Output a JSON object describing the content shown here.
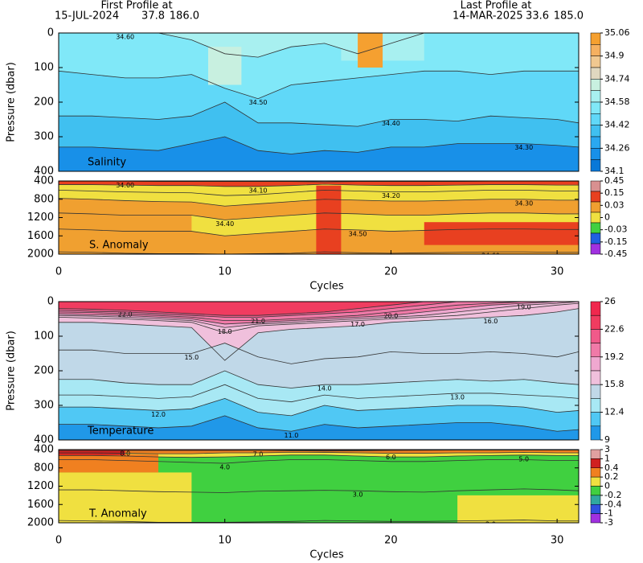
{
  "header": {
    "first": {
      "title": "First Profile at",
      "date": "15-JUL-2024",
      "lat": "37.8",
      "lon": "186.0"
    },
    "last": {
      "title": "Last Profile at",
      "date": "14-MAR-2025",
      "lat": "33.6",
      "lon": "185.0"
    }
  },
  "chart_data": [
    {
      "type": "contour",
      "label": "Salinity",
      "ylabel": "Pressure (dbar)",
      "x": [
        0,
        2,
        4,
        6,
        8,
        10,
        12,
        14,
        16,
        18,
        20,
        22,
        24,
        26,
        28,
        30,
        31.3
      ],
      "xlim": [
        0,
        31.3
      ],
      "ylim": [
        0,
        400
      ],
      "yticks": [
        0,
        100,
        200,
        300,
        400
      ],
      "y_inverted": true,
      "colorbar": {
        "ticks": [
          35.06,
          34.9,
          34.74,
          34.58,
          34.42,
          34.26,
          34.1
        ],
        "colors": [
          "#f5a030",
          "#f5b060",
          "#f0c890",
          "#e0d8c0",
          "#c8f0e0",
          "#a8f0f0",
          "#80e8f8",
          "#60d8f8",
          "#40c0f0",
          "#2aa8f0",
          "#1890e8",
          "#0878d8"
        ]
      },
      "contours": [
        {
          "label": "34.60",
          "level": 34.6,
          "depth": [
            0,
            0,
            0,
            0,
            20,
            60,
            70,
            40,
            30,
            60,
            30,
            0,
            0,
            0,
            0,
            0,
            0
          ]
        },
        {
          "label": "34.50",
          "level": 34.5,
          "depth": [
            110,
            120,
            130,
            130,
            120,
            160,
            190,
            150,
            140,
            130,
            120,
            110,
            110,
            120,
            110,
            110,
            110
          ]
        },
        {
          "label": "34.40",
          "level": 34.4,
          "depth": [
            240,
            240,
            245,
            250,
            240,
            200,
            260,
            260,
            265,
            270,
            250,
            250,
            255,
            240,
            245,
            250,
            260
          ]
        },
        {
          "label": "34.30",
          "level": 34.3,
          "depth": [
            330,
            330,
            335,
            340,
            320,
            300,
            340,
            350,
            340,
            345,
            330,
            330,
            320,
            320,
            320,
            325,
            330
          ]
        }
      ],
      "band_values": [
        34.65,
        34.55,
        34.45,
        34.35,
        34.2
      ],
      "patches": [
        {
          "value": 34.65,
          "x": [
            17,
            22
          ],
          "y": [
            0,
            80
          ]
        },
        {
          "value": 34.7,
          "x": [
            9,
            11
          ],
          "y": [
            40,
            150
          ]
        },
        {
          "value": 35.0,
          "x": [
            18,
            19.5
          ],
          "y": [
            0,
            100
          ]
        }
      ]
    },
    {
      "type": "contour",
      "label": "S. Anomaly",
      "xlabel": "Cycles",
      "x": [
        0,
        2,
        4,
        6,
        8,
        10,
        12,
        14,
        16,
        18,
        20,
        22,
        24,
        26,
        28,
        30,
        31.3
      ],
      "xlim": [
        0,
        31.3
      ],
      "xticks": [
        0,
        10,
        20,
        30
      ],
      "ylim": [
        400,
        2000
      ],
      "yticks": [
        400,
        800,
        1200,
        1600,
        2000
      ],
      "y_inverted": true,
      "colorbar": {
        "ticks": [
          0.45,
          0.15,
          0.03,
          0,
          -0.03,
          -0.15,
          -0.45
        ],
        "colors": [
          "#d89090",
          "#e84020",
          "#f0a030",
          "#f0e040",
          "#40d040",
          "#2060e0",
          "#a030e0"
        ]
      },
      "contours": [
        {
          "label": "34.00",
          "level": 34.0,
          "depth": [
            405,
            405,
            405,
            410,
            410,
            410,
            410,
            410,
            420,
            410,
            410,
            410,
            410,
            405,
            405,
            405,
            405
          ]
        },
        {
          "label": "34.10",
          "level": 34.1,
          "depth": [
            480,
            480,
            490,
            500,
            500,
            520,
            520,
            500,
            470,
            490,
            500,
            500,
            490,
            480,
            480,
            490,
            490
          ]
        },
        {
          "label": "34.20",
          "level": 34.2,
          "depth": [
            600,
            620,
            640,
            650,
            660,
            720,
            700,
            650,
            600,
            620,
            640,
            640,
            620,
            600,
            600,
            620,
            620
          ]
        },
        {
          "label": "34.30",
          "level": 34.3,
          "depth": [
            780,
            800,
            830,
            850,
            860,
            950,
            900,
            850,
            800,
            820,
            840,
            840,
            820,
            800,
            800,
            820,
            820
          ]
        },
        {
          "label": "34.40",
          "level": 34.4,
          "depth": [
            1100,
            1120,
            1150,
            1150,
            1150,
            1250,
            1200,
            1150,
            1100,
            1120,
            1150,
            1150,
            1120,
            1100,
            1100,
            1120,
            1120
          ]
        },
        {
          "label": "34.50",
          "level": 34.5,
          "depth": [
            1450,
            1470,
            1500,
            1500,
            1500,
            1600,
            1550,
            1500,
            1450,
            1470,
            1500,
            1480,
            1460,
            1450,
            1450,
            1460,
            1460
          ]
        },
        {
          "label": "34.60",
          "level": 34.6,
          "depth": [
            1950,
            1960,
            1980,
            1990,
            1990,
            2000,
            1990,
            1980,
            1950,
            1970,
            1980,
            1970,
            1960,
            1950,
            1950,
            1960,
            1960
          ]
        }
      ],
      "band_values": [
        0.2,
        0.08,
        -0.01,
        -0.01,
        0.02,
        -0.01,
        0.02,
        0.02
      ],
      "patches": [
        {
          "value": 0.02,
          "x": [
            0,
            8
          ],
          "y": [
            900,
            2000
          ]
        },
        {
          "value": 0.08,
          "x": [
            15.5,
            17
          ],
          "y": [
            500,
            2000
          ]
        },
        {
          "value": 0.08,
          "x": [
            22,
            31.3
          ],
          "y": [
            1300,
            1800
          ]
        }
      ]
    },
    {
      "type": "contour",
      "label": "Temperature",
      "ylabel": "Pressure (dbar)",
      "x": [
        0,
        2,
        4,
        6,
        8,
        10,
        12,
        14,
        16,
        18,
        20,
        22,
        24,
        26,
        28,
        30,
        31.3
      ],
      "xlim": [
        0,
        31.3
      ],
      "ylim": [
        0,
        400
      ],
      "yticks": [
        0,
        100,
        200,
        300,
        400
      ],
      "y_inverted": true,
      "colorbar": {
        "ticks": [
          26,
          22.6,
          19.2,
          15.8,
          12.4,
          9
        ],
        "colors": [
          "#f0284e",
          "#f03c60",
          "#f05a8a",
          "#f07aa8",
          "#f0a8d0",
          "#f0c0dc",
          "#c0d8e8",
          "#a8e8f4",
          "#50c8f4",
          "#2098e8"
        ]
      },
      "contours": [
        {
          "label": "22.0",
          "level": 22,
          "depth": [
            20,
            22,
            25,
            30,
            35,
            40,
            40,
            35,
            30,
            20,
            10,
            0,
            0,
            0,
            0,
            0,
            0
          ]
        },
        {
          "label": "21.0",
          "level": 21,
          "depth": [
            25,
            28,
            30,
            35,
            40,
            45,
            45,
            40,
            35,
            30,
            20,
            10,
            0,
            0,
            0,
            0,
            0
          ]
        },
        {
          "label": "20.0",
          "level": 20,
          "depth": [
            30,
            32,
            35,
            40,
            45,
            55,
            55,
            50,
            45,
            40,
            30,
            20,
            10,
            5,
            0,
            0,
            0
          ]
        },
        {
          "label": "19.0",
          "level": 19,
          "depth": [
            35,
            38,
            40,
            45,
            50,
            65,
            60,
            55,
            50,
            45,
            40,
            30,
            20,
            10,
            5,
            0,
            0
          ]
        },
        {
          "label": "18.0",
          "level": 18,
          "depth": [
            40,
            42,
            45,
            50,
            55,
            75,
            65,
            60,
            55,
            50,
            45,
            40,
            30,
            20,
            10,
            5,
            0
          ]
        },
        {
          "label": "17.0",
          "level": 17,
          "depth": [
            45,
            48,
            50,
            55,
            60,
            90,
            70,
            65,
            60,
            55,
            50,
            45,
            40,
            30,
            20,
            10,
            5
          ]
        },
        {
          "label": "16.0",
          "level": 16,
          "depth": [
            60,
            60,
            65,
            70,
            75,
            170,
            90,
            80,
            75,
            70,
            60,
            55,
            50,
            45,
            40,
            30,
            20
          ]
        },
        {
          "label": "15.0",
          "level": 15,
          "depth": [
            140,
            140,
            150,
            150,
            150,
            120,
            160,
            180,
            165,
            160,
            145,
            150,
            150,
            145,
            150,
            160,
            145
          ]
        },
        {
          "label": "14.0",
          "level": 14,
          "depth": [
            225,
            225,
            235,
            240,
            240,
            200,
            240,
            250,
            240,
            240,
            235,
            230,
            225,
            230,
            225,
            235,
            240
          ]
        },
        {
          "label": "13.0",
          "level": 13,
          "depth": [
            270,
            270,
            275,
            280,
            275,
            240,
            280,
            290,
            270,
            280,
            275,
            270,
            265,
            265,
            270,
            275,
            280
          ]
        },
        {
          "label": "12.0",
          "level": 12,
          "depth": [
            305,
            305,
            310,
            315,
            310,
            280,
            320,
            330,
            300,
            315,
            310,
            305,
            300,
            300,
            305,
            320,
            315
          ]
        },
        {
          "label": "11.0",
          "level": 11,
          "depth": [
            355,
            355,
            360,
            365,
            360,
            330,
            365,
            375,
            355,
            365,
            360,
            355,
            350,
            350,
            360,
            375,
            370
          ]
        }
      ],
      "band_values": [
        23.5,
        21.5,
        20.5,
        19.5,
        18.5,
        17.5,
        16.5,
        15.5,
        14.5,
        13.5,
        12.5,
        11.5,
        10.5
      ],
      "patches": []
    },
    {
      "type": "contour",
      "label": "T. Anomaly",
      "xlabel": "Cycles",
      "x": [
        0,
        2,
        4,
        6,
        8,
        10,
        12,
        14,
        16,
        18,
        20,
        22,
        24,
        26,
        28,
        30,
        31.3
      ],
      "xlim": [
        0,
        31.3
      ],
      "xticks": [
        0,
        10,
        20,
        30
      ],
      "ylim": [
        400,
        2000
      ],
      "yticks": [
        400,
        800,
        1200,
        1600,
        2000
      ],
      "y_inverted": true,
      "colorbar": {
        "ticks": [
          3,
          1,
          0.4,
          0.2,
          0,
          -0.2,
          -0.4,
          -1,
          -3
        ],
        "colors": [
          "#e0a0a0",
          "#d02020",
          "#f08020",
          "#f0e040",
          "#40d040",
          "#30a8a0",
          "#3050e0",
          "#a030e0"
        ]
      },
      "contours": [
        {
          "label": "8.0",
          "level": 8,
          "depth": [
            400,
            400,
            400,
            400,
            400,
            400,
            400,
            410,
            420,
            415,
            405,
            400,
            400,
            400,
            400,
            400,
            400
          ]
        },
        {
          "label": "7.0",
          "level": 7,
          "depth": [
            420,
            420,
            420,
            420,
            420,
            420,
            415,
            425,
            430,
            425,
            420,
            415,
            410,
            410,
            410,
            410,
            410
          ]
        },
        {
          "label": "6.0",
          "level": 6,
          "depth": [
            470,
            470,
            480,
            490,
            490,
            470,
            470,
            460,
            460,
            470,
            480,
            480,
            470,
            470,
            460,
            470,
            470
          ]
        },
        {
          "label": "5.0",
          "level": 5,
          "depth": [
            530,
            530,
            540,
            560,
            570,
            560,
            540,
            520,
            520,
            540,
            560,
            560,
            540,
            530,
            520,
            530,
            530
          ]
        },
        {
          "label": "4.0",
          "level": 4,
          "depth": [
            620,
            620,
            640,
            660,
            680,
            700,
            650,
            620,
            620,
            640,
            660,
            660,
            640,
            620,
            620,
            640,
            640
          ]
        },
        {
          "label": "3.0",
          "level": 3,
          "depth": [
            1280,
            1280,
            1300,
            1320,
            1330,
            1340,
            1310,
            1300,
            1290,
            1300,
            1320,
            1330,
            1300,
            1280,
            1260,
            1280,
            1300
          ]
        },
        {
          "label": "2.0",
          "level": 2,
          "depth": [
            1950,
            1960,
            1970,
            1990,
            1990,
            1990,
            1980,
            1970,
            1950,
            1960,
            1970,
            1970,
            1960,
            1950,
            1940,
            1960,
            1960
          ]
        }
      ],
      "band_values": [
        0.6,
        0.6,
        0.3,
        0.1,
        -0.1,
        -0.1,
        -0.1,
        -0.1
      ],
      "patches": [
        {
          "value": 0.1,
          "x": [
            0,
            8
          ],
          "y": [
            900,
            2000
          ]
        },
        {
          "value": 0.3,
          "x": [
            0,
            6
          ],
          "y": [
            500,
            900
          ]
        },
        {
          "value": 0.6,
          "x": [
            0,
            4
          ],
          "y": [
            420,
            520
          ]
        },
        {
          "value": 0.1,
          "x": [
            24,
            31.3
          ],
          "y": [
            1400,
            2000
          ]
        }
      ]
    }
  ]
}
